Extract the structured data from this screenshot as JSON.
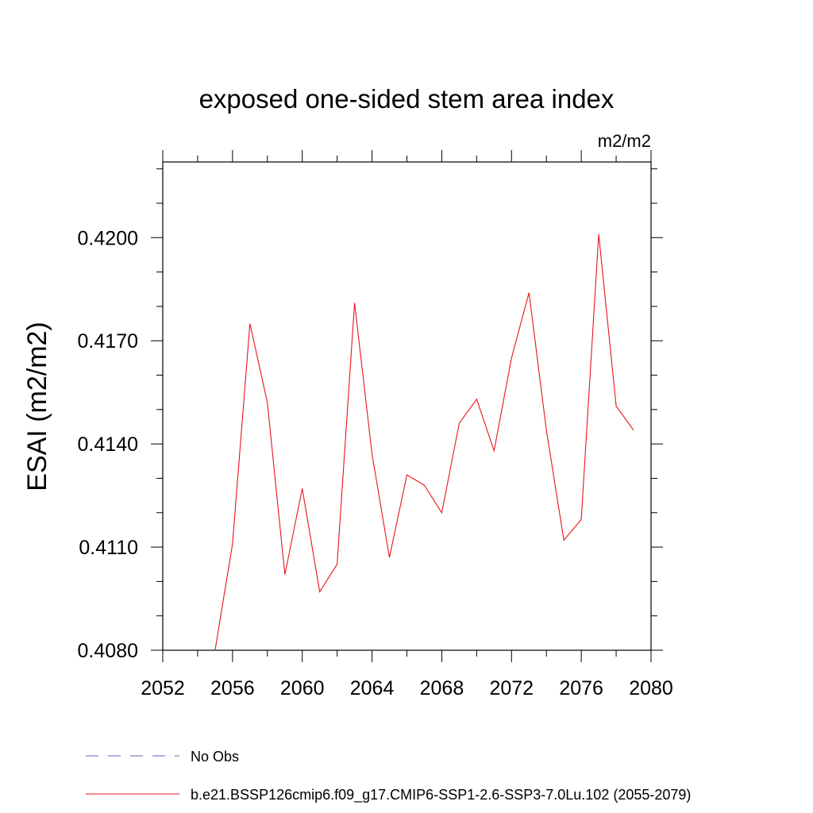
{
  "chart_data": {
    "type": "line",
    "title": "exposed one-sided stem area index",
    "units_label": "m2/m2",
    "xlabel": "",
    "ylabel": "ESAI  (m2/m2)",
    "xlim": [
      2052,
      2080
    ],
    "ylim": [
      0.408,
      0.4222
    ],
    "x_ticks": [
      2052,
      2056,
      2060,
      2064,
      2068,
      2072,
      2076,
      2080
    ],
    "x_tick_labels": [
      "2052",
      "2056",
      "2060",
      "2064",
      "2068",
      "2072",
      "2076",
      "2080"
    ],
    "y_ticks": [
      0.408,
      0.411,
      0.414,
      0.417,
      0.42
    ],
    "y_tick_labels": [
      "0.4080",
      "0.4110",
      "0.4140",
      "0.4170",
      "0.4200"
    ],
    "grid": false,
    "legend_position": "bottom",
    "series": [
      {
        "name": "b.e21.BSSP126cmip6.f09_g17.CMIP6-SSP1-2.6-SSP3-7.0Lu.102 (2055-2079)",
        "color": "#e8141a",
        "style": "solid",
        "x": [
          2055,
          2056,
          2057,
          2058,
          2059,
          2060,
          2061,
          2062,
          2063,
          2064,
          2065,
          2066,
          2067,
          2068,
          2069,
          2070,
          2071,
          2072,
          2073,
          2074,
          2075,
          2076,
          2077,
          2078,
          2079
        ],
        "y": [
          0.408,
          0.4111,
          0.4175,
          0.4152,
          0.4102,
          0.4127,
          0.4097,
          0.4105,
          0.4181,
          0.4137,
          0.4107,
          0.4131,
          0.4128,
          0.412,
          0.4146,
          0.4153,
          0.4138,
          0.4165,
          0.4184,
          0.4144,
          0.4112,
          0.4118,
          0.4201,
          0.4151,
          0.4144
        ]
      },
      {
        "name": "No Obs",
        "color": "#6b5fb0",
        "style": "dashed",
        "x": [],
        "y": []
      }
    ]
  }
}
